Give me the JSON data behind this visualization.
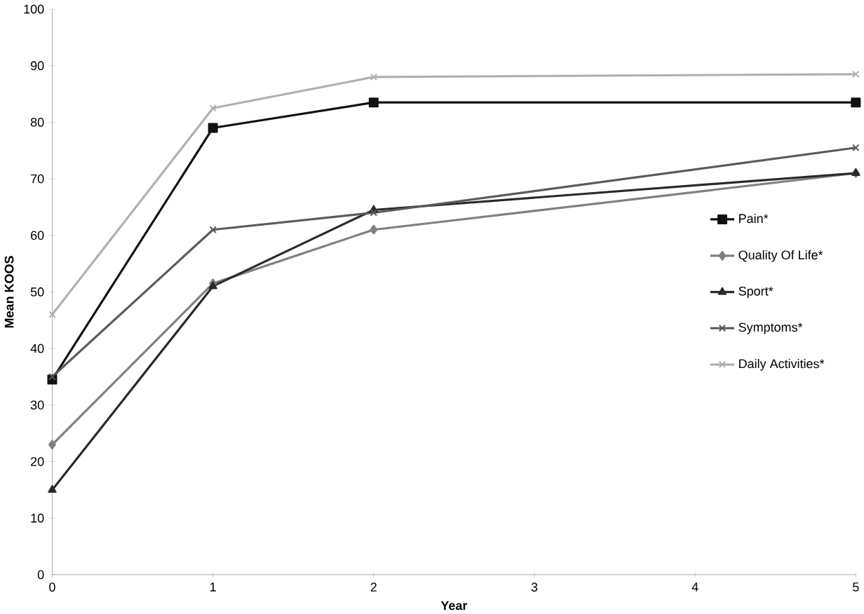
{
  "chart_data": {
    "type": "line",
    "xlabel": "Year",
    "ylabel": "Mean KOOS",
    "x": [
      0,
      1,
      2,
      5
    ],
    "xlim": [
      0,
      5
    ],
    "xticks": [
      0,
      1,
      2,
      3,
      4,
      5
    ],
    "ylim": [
      0,
      100
    ],
    "yticks": [
      0,
      10,
      20,
      30,
      40,
      50,
      60,
      70,
      80,
      90,
      100
    ],
    "legend": "right",
    "grid": false,
    "series": [
      {
        "name": "Pain*",
        "color": "#111111",
        "marker": "square",
        "values": [
          34.5,
          79,
          83.5,
          83.5
        ]
      },
      {
        "name": "Quality Of Life*",
        "color": "#808080",
        "marker": "diamond",
        "values": [
          23,
          51.5,
          61,
          71
        ]
      },
      {
        "name": "Sport*",
        "color": "#2a2a2a",
        "marker": "triangle",
        "values": [
          15,
          51,
          64.5,
          71
        ]
      },
      {
        "name": "Symptoms*",
        "color": "#5a5a5a",
        "marker": "cross",
        "values": [
          35,
          61,
          64,
          75.5
        ]
      },
      {
        "name": "Daily Activities*",
        "color": "#b0b0b0",
        "marker": "cross",
        "values": [
          46,
          82.5,
          88,
          88.5
        ]
      }
    ]
  }
}
